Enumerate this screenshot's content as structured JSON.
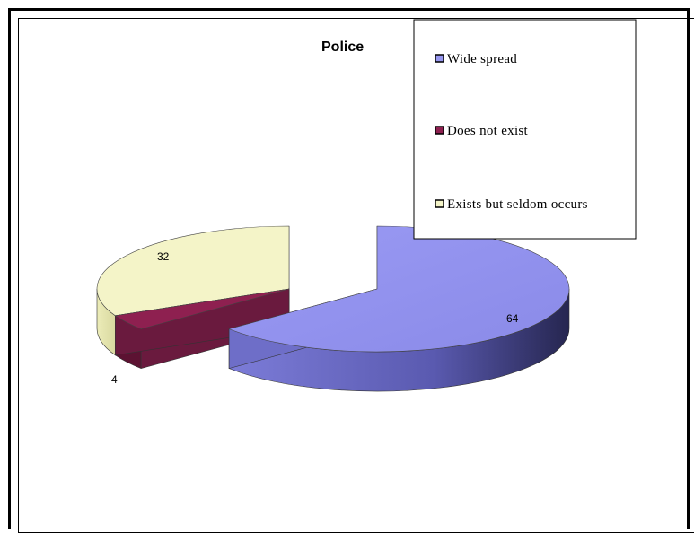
{
  "chart_data": {
    "type": "pie",
    "title": "Police",
    "categories": [
      "Wide spread",
      "Does not exist",
      "Exists but seldom occurs"
    ],
    "values": [
      64,
      4,
      32
    ],
    "data_labels": [
      "64",
      "4",
      "32"
    ],
    "colors": [
      "#9797f0",
      "#8e2050",
      "#f4f4c8"
    ],
    "legend_position": "top-right",
    "style": "3d-exploded"
  }
}
